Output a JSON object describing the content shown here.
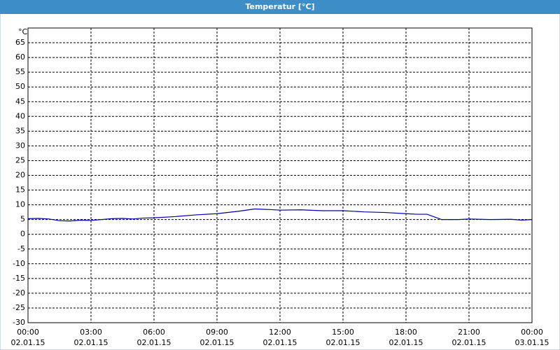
{
  "chart_data": {
    "type": "line",
    "title": "Temperatur [°C]",
    "y_label": "°C",
    "x": [
      0,
      0.5,
      1,
      1.5,
      2,
      2.5,
      3,
      3.5,
      4,
      4.5,
      5,
      5.5,
      6,
      7,
      8,
      9,
      10,
      10.8,
      11.5,
      12,
      13,
      14,
      15,
      16,
      17,
      18,
      18.5,
      19,
      19.7,
      20.5,
      21,
      22,
      23,
      23.5,
      24
    ],
    "series": [
      {
        "name": "Temperatur",
        "color": "#000099",
        "values": [
          5.3,
          5.4,
          5.2,
          4.6,
          4.5,
          4.8,
          4.7,
          5,
          5.3,
          5.4,
          5.2,
          5.5,
          5.6,
          6,
          6.6,
          7,
          7.8,
          8.6,
          8.4,
          8.2,
          8.3,
          8,
          8,
          7.6,
          7.4,
          7,
          6.8,
          6.8,
          5,
          5,
          5.2,
          5,
          5.1,
          4.8,
          5
        ]
      }
    ],
    "xlim": [
      0,
      24
    ],
    "xticks": [
      {
        "value": 0,
        "label": "00:00"
      },
      {
        "value": 3,
        "label": "03:00"
      },
      {
        "value": 6,
        "label": "06:00"
      },
      {
        "value": 9,
        "label": "09:00"
      },
      {
        "value": 12,
        "label": "12:00"
      },
      {
        "value": 15,
        "label": "15:00"
      },
      {
        "value": 18,
        "label": "18:00"
      },
      {
        "value": 21,
        "label": "21:00"
      },
      {
        "value": 24,
        "label": "00:00"
      }
    ],
    "xtick_dates": [
      "02.01.15",
      "02.01.15",
      "02.01.15",
      "02.01.15",
      "02.01.15",
      "02.01.15",
      "02.01.15",
      "02.01.15",
      "03.01.15"
    ],
    "ylim": [
      -30,
      70
    ],
    "yticks": [
      -30,
      -25,
      -20,
      -15,
      -10,
      -5,
      0,
      5,
      10,
      15,
      20,
      25,
      30,
      35,
      40,
      45,
      50,
      55,
      60,
      65
    ],
    "grid": true
  }
}
